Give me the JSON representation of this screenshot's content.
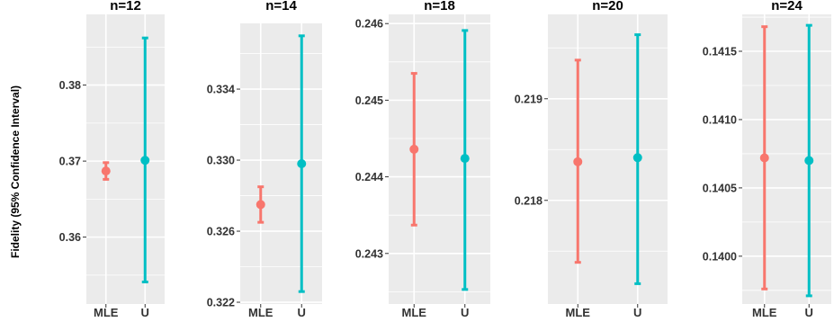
{
  "colors": {
    "panel_bg": "#EBEBEB",
    "grid": "#FFFFFF",
    "MLE": "#F8766D",
    "U": "#00BFC4"
  },
  "ylabel": "Fidelity (95% Confidence Interval)",
  "chart_data": [
    {
      "type": "errorbar",
      "title": "n=12",
      "categories": [
        "MLE",
        "U"
      ],
      "points": [
        {
          "name": "MLE",
          "estimate": 0.3687,
          "lower": 0.3676,
          "upper": 0.3698
        },
        {
          "name": "U",
          "estimate": 0.3701,
          "lower": 0.3541,
          "upper": 0.3862
        }
      ],
      "ylim": [
        0.3512,
        0.3893
      ],
      "yticks": [
        0.36,
        0.37,
        0.38
      ],
      "ytick_labels": [
        "0.36",
        "0.37",
        "0.38"
      ]
    },
    {
      "type": "errorbar",
      "title": "n=14",
      "categories": [
        "MLE",
        "U"
      ],
      "points": [
        {
          "name": "MLE",
          "estimate": 0.3275,
          "lower": 0.3265,
          "upper": 0.3285
        },
        {
          "name": "U",
          "estimate": 0.3298,
          "lower": 0.3226,
          "upper": 0.337
        }
      ],
      "ylim": [
        0.3219,
        0.3377
      ],
      "yticks": [
        0.322,
        0.326,
        0.33,
        0.334
      ],
      "ytick_labels": [
        "0.322",
        "0.326",
        "0.330",
        "0.334"
      ]
    },
    {
      "type": "errorbar",
      "title": "n=18",
      "categories": [
        "MLE",
        "U"
      ],
      "points": [
        {
          "name": "MLE",
          "estimate": 0.24436,
          "lower": 0.24337,
          "upper": 0.24535
        },
        {
          "name": "U",
          "estimate": 0.24424,
          "lower": 0.24253,
          "upper": 0.24591
        }
      ],
      "ylim": [
        0.24234,
        0.24612
      ],
      "yticks": [
        0.243,
        0.244,
        0.245,
        0.246
      ],
      "ytick_labels": [
        "0.243",
        "0.244",
        "0.245",
        "0.246"
      ]
    },
    {
      "type": "errorbar",
      "title": "n=20",
      "categories": [
        "MLE",
        "U"
      ],
      "points": [
        {
          "name": "MLE",
          "estimate": 0.21838,
          "lower": 0.21739,
          "upper": 0.21938
        },
        {
          "name": "U",
          "estimate": 0.21842,
          "lower": 0.21718,
          "upper": 0.21963
        }
      ],
      "ylim": [
        0.21698,
        0.21983
      ],
      "yticks": [
        0.218,
        0.219
      ],
      "ytick_labels": [
        "0.218",
        "0.219"
      ]
    },
    {
      "type": "errorbar",
      "title": "n=24",
      "categories": [
        "MLE",
        "U"
      ],
      "points": [
        {
          "name": "MLE",
          "estimate": 0.14072,
          "lower": 0.13976,
          "upper": 0.14168
        },
        {
          "name": "U",
          "estimate": 0.1407,
          "lower": 0.13971,
          "upper": 0.14169
        }
      ],
      "ylim": [
        0.13965,
        0.14177
      ],
      "yticks": [
        0.14,
        0.1405,
        0.141,
        0.1415
      ],
      "ytick_labels": [
        "0.1400",
        "0.1405",
        "0.1410",
        "0.1415"
      ]
    }
  ]
}
